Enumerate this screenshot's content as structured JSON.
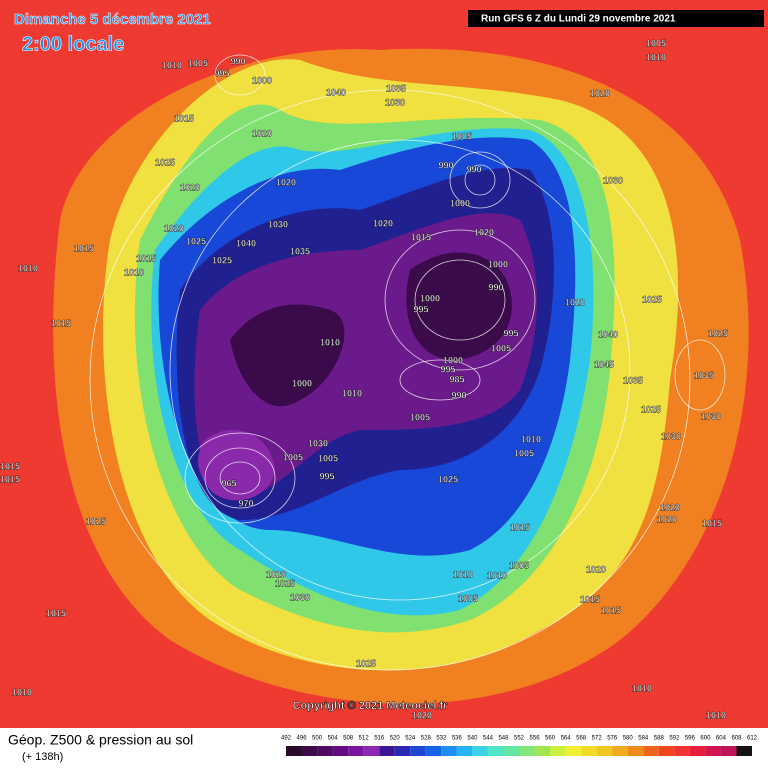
{
  "header": {
    "date": "Dimanche 5 décembre 2021",
    "time": "2:00 locale",
    "run": "Run GFS 6 Z du Lundi 29 novembre 2021"
  },
  "map": {
    "copyright": "Copyright © 2021 Meteociel.fr",
    "labels": [
      "1010",
      "1005",
      "990",
      "995",
      "1000",
      "1005",
      "1010",
      "1020",
      "1035",
      "1030",
      "1040",
      "1015",
      "1020",
      "1025",
      "1020",
      "1020",
      "1005",
      "990",
      "990",
      "1000",
      "1020",
      "1015",
      "1020",
      "1030",
      "1020",
      "1025",
      "1030",
      "1040",
      "1035",
      "1015",
      "1015",
      "1010",
      "1025",
      "1010",
      "1000",
      "990",
      "1000",
      "995",
      "1020",
      "1025",
      "1025",
      "1015",
      "995",
      "1005",
      "1040",
      "1010",
      "1000",
      "995",
      "985",
      "1045",
      "990",
      "1010",
      "1000",
      "1035",
      "1035",
      "1005",
      "1010",
      "1005",
      "1025",
      "1030",
      "1030",
      "1030",
      "1005",
      "1005",
      "1015",
      "1015",
      "995",
      "1025",
      "965",
      "970",
      "1025",
      "1015",
      "1020",
      "1020",
      "1015",
      "1020",
      "1025",
      "1030",
      "1005",
      "1010",
      "1010",
      "1020",
      "1005",
      "1015",
      "1015",
      "1015",
      "1025",
      "1010",
      "1010",
      "1010",
      "1020"
    ]
  },
  "footer": {
    "title": "Géop. Z500 & pression au sol",
    "lead": "(+ 138h)"
  },
  "legend": {
    "ticks": [
      492,
      496,
      500,
      504,
      508,
      512,
      516,
      520,
      524,
      528,
      532,
      536,
      540,
      544,
      548,
      552,
      556,
      560,
      564,
      568,
      572,
      576,
      580,
      584,
      588,
      592,
      596,
      600,
      604,
      608,
      612
    ],
    "colors": [
      "#2a0a2a",
      "#3c0a46",
      "#500a64",
      "#640a82",
      "#7a14a0",
      "#8c28b4",
      "#3c1496",
      "#2828b4",
      "#1e46d2",
      "#1464e6",
      "#1e8cf0",
      "#28b4f0",
      "#3cd2e6",
      "#50e6c8",
      "#64e6a0",
      "#82e678",
      "#a0e650",
      "#c8f03c",
      "#f0f032",
      "#f0dc28",
      "#f0c81e",
      "#f0aa1e",
      "#f08c1e",
      "#f0641e",
      "#f0461e",
      "#f03232",
      "#e61e3c",
      "#d21450",
      "#be145a",
      "#141414"
    ]
  }
}
